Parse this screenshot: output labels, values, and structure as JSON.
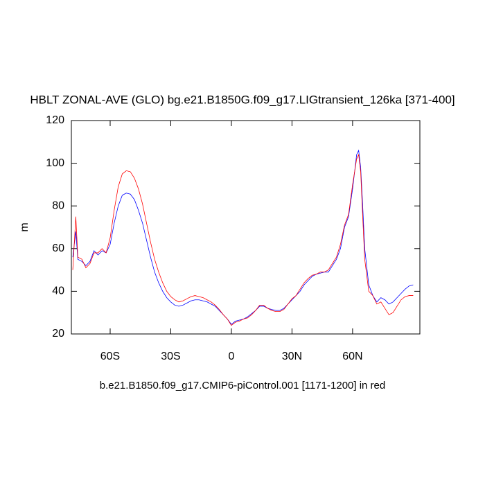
{
  "chart_data": {
    "type": "line",
    "title": "HBLT ZONAL-AVE (GLO) bg.e21.B1850G.f09_g17.LIGtransient_126ka [371-400]",
    "x_label": "b.e21.B1850.f09_g17.CMIP6-piControl.001 [1171-1200] in red",
    "y_label": "m",
    "x": [
      -78.5,
      -77,
      -76,
      -74,
      -72,
      -70,
      -68,
      -66,
      -64,
      -62,
      -60,
      -58,
      -56,
      -54,
      -52,
      -50,
      -48,
      -46,
      -44,
      -42,
      -40,
      -38,
      -36,
      -34,
      -32,
      -30,
      -28,
      -26,
      -24,
      -22,
      -20,
      -18,
      -16,
      -14,
      -12,
      -10,
      -8,
      -6,
      -4,
      -2,
      0,
      2,
      4,
      6,
      8,
      10,
      12,
      14,
      16,
      18,
      20,
      22,
      24,
      26,
      28,
      30,
      32,
      34,
      36,
      38,
      40,
      42,
      44,
      46,
      48,
      50,
      52,
      54,
      56,
      58,
      60,
      62,
      63,
      64,
      65,
      66,
      68,
      70,
      72,
      74,
      76,
      78,
      80,
      82,
      84,
      86,
      88,
      90
    ],
    "series": [
      {
        "color": "#0000ff",
        "values": [
          56,
          68,
          55,
          54,
          52,
          54,
          59,
          57,
          59,
          58,
          62,
          72,
          80,
          85,
          86,
          85.5,
          83,
          78,
          72,
          64,
          56,
          49,
          44,
          40,
          37,
          35,
          33.5,
          33,
          33.5,
          34.5,
          35.5,
          36,
          36,
          35.5,
          35,
          34,
          33,
          31,
          29,
          27,
          24.5,
          26,
          26.5,
          27,
          28,
          29.5,
          31,
          33,
          33,
          32,
          31.5,
          31,
          31,
          32,
          34,
          36,
          38,
          40,
          43,
          45,
          47,
          48,
          48.5,
          49,
          49,
          52,
          55,
          60,
          70,
          75,
          88,
          104,
          106,
          98,
          80,
          60,
          43,
          38,
          35,
          37,
          36,
          34,
          35,
          37,
          39,
          41,
          42.5,
          43
        ]
      },
      {
        "color": "#ff0000",
        "values": [
          50,
          75,
          56,
          55,
          51,
          53,
          58,
          58,
          60,
          58,
          65,
          78,
          89,
          95,
          96.5,
          96,
          93,
          88,
          81,
          72,
          63,
          55,
          49,
          44,
          40,
          37.5,
          36,
          35,
          35.5,
          36.5,
          37.5,
          38,
          37.5,
          37,
          36,
          35,
          33.5,
          31.5,
          29,
          27,
          24,
          25.5,
          26,
          27,
          27.5,
          29,
          31,
          33.5,
          33.5,
          32,
          31,
          30.5,
          30.5,
          31.5,
          34,
          36.5,
          38,
          41,
          44,
          46,
          47.5,
          48,
          49,
          49,
          50,
          53,
          56,
          62,
          71,
          76,
          90,
          102,
          104,
          96,
          75,
          55,
          40,
          38,
          34,
          35,
          32,
          29,
          30,
          33,
          36,
          37.5,
          38,
          38
        ]
      }
    ],
    "xlim": [
      -79.2,
      93.3
    ],
    "xticks": [
      {
        "value": -60,
        "label": "60S"
      },
      {
        "value": -30,
        "label": "30S"
      },
      0,
      {
        "value": 30,
        "label": "30N"
      },
      {
        "value": 60,
        "label": "60N"
      }
    ],
    "ylim": [
      20,
      120
    ],
    "yticks": [
      20,
      40,
      60,
      80,
      100,
      120
    ]
  }
}
